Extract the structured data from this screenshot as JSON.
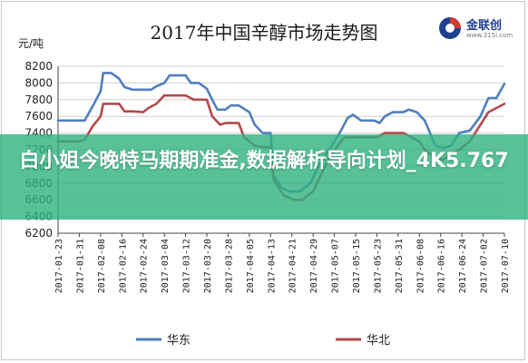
{
  "page": {
    "banner_text": "白小姐今晚特马期期准金,数据解析导向计划_4K5.767"
  },
  "logo": {
    "name": "金联创",
    "url": "www.315i.com",
    "colors": [
      "#1f3f8f",
      "#d23a2e"
    ]
  },
  "colors": {
    "华东": "#4f7fbf",
    "华北": "#b34a4a",
    "grid": "#cfcfcf",
    "banner": "#2eb280"
  },
  "chart_data": {
    "type": "line",
    "title": "2017年中国辛醇市场走势图",
    "ylabel": "元/吨",
    "xlabel": "",
    "ylim": [
      6200,
      8200
    ],
    "yticks": [
      6200,
      6400,
      6600,
      6800,
      7000,
      7200,
      7400,
      7600,
      7800,
      8000,
      8200
    ],
    "x_range": [
      "2017-01-23",
      "2017-07-10"
    ],
    "xtick_labels": [
      "2017-01-23",
      "2017-01-31",
      "2017-02-08",
      "2017-02-16",
      "2017-02-24",
      "2017-03-04",
      "2017-03-12",
      "2017-03-20",
      "2017-03-28",
      "2017-04-05",
      "2017-04-13",
      "2017-04-21",
      "2017-04-29",
      "2017-05-07",
      "2017-05-15",
      "2017-05-23",
      "2017-05-31",
      "2017-06-08",
      "2017-06-16",
      "2017-06-24",
      "2017-07-02",
      "2017-07-10"
    ],
    "grid": "horizontal",
    "legend_position": "bottom",
    "series": [
      {
        "name": "华东",
        "color": "#4f7fbf",
        "points": [
          [
            "2017-01-23",
            7550
          ],
          [
            "2017-01-31",
            7550
          ],
          [
            "2017-02-02",
            7550
          ],
          [
            "2017-02-05",
            7720
          ],
          [
            "2017-02-08",
            7900
          ],
          [
            "2017-02-09",
            8120
          ],
          [
            "2017-02-12",
            8120
          ],
          [
            "2017-02-15",
            8050
          ],
          [
            "2017-02-17",
            7950
          ],
          [
            "2017-02-20",
            7920
          ],
          [
            "2017-02-24",
            7920
          ],
          [
            "2017-02-27",
            7920
          ],
          [
            "2017-03-01",
            7960
          ],
          [
            "2017-03-04",
            8000
          ],
          [
            "2017-03-06",
            8090
          ],
          [
            "2017-03-09",
            8090
          ],
          [
            "2017-03-12",
            8090
          ],
          [
            "2017-03-14",
            8000
          ],
          [
            "2017-03-17",
            8000
          ],
          [
            "2017-03-20",
            7930
          ],
          [
            "2017-03-22",
            7800
          ],
          [
            "2017-03-24",
            7680
          ],
          [
            "2017-03-27",
            7680
          ],
          [
            "2017-03-29",
            7730
          ],
          [
            "2017-04-01",
            7730
          ],
          [
            "2017-04-05",
            7650
          ],
          [
            "2017-04-07",
            7500
          ],
          [
            "2017-04-10",
            7400
          ],
          [
            "2017-04-13",
            7400
          ],
          [
            "2017-04-14",
            6900
          ],
          [
            "2017-04-17",
            6750
          ],
          [
            "2017-04-20",
            6700
          ],
          [
            "2017-04-24",
            6700
          ],
          [
            "2017-04-28",
            6800
          ],
          [
            "2017-05-01",
            7000
          ],
          [
            "2017-05-04",
            7150
          ],
          [
            "2017-05-07",
            7300
          ],
          [
            "2017-05-09",
            7400
          ],
          [
            "2017-05-12",
            7580
          ],
          [
            "2017-05-14",
            7620
          ],
          [
            "2017-05-17",
            7550
          ],
          [
            "2017-05-22",
            7550
          ],
          [
            "2017-05-24",
            7520
          ],
          [
            "2017-05-26",
            7600
          ],
          [
            "2017-05-29",
            7650
          ],
          [
            "2017-06-02",
            7650
          ],
          [
            "2017-06-04",
            7680
          ],
          [
            "2017-06-07",
            7650
          ],
          [
            "2017-06-10",
            7550
          ],
          [
            "2017-06-12",
            7400
          ],
          [
            "2017-06-14",
            7250
          ],
          [
            "2017-06-17",
            7220
          ],
          [
            "2017-06-20",
            7250
          ],
          [
            "2017-06-23",
            7400
          ],
          [
            "2017-06-27",
            7430
          ],
          [
            "2017-07-01",
            7600
          ],
          [
            "2017-07-04",
            7820
          ],
          [
            "2017-07-07",
            7820
          ],
          [
            "2017-07-10",
            7990
          ]
        ]
      },
      {
        "name": "华北",
        "color": "#b34a4a",
        "points": [
          [
            "2017-01-23",
            7300
          ],
          [
            "2017-01-31",
            7300
          ],
          [
            "2017-02-02",
            7320
          ],
          [
            "2017-02-05",
            7480
          ],
          [
            "2017-02-08",
            7600
          ],
          [
            "2017-02-09",
            7750
          ],
          [
            "2017-02-15",
            7750
          ],
          [
            "2017-02-17",
            7660
          ],
          [
            "2017-02-20",
            7660
          ],
          [
            "2017-02-24",
            7650
          ],
          [
            "2017-02-26",
            7700
          ],
          [
            "2017-03-01",
            7750
          ],
          [
            "2017-03-04",
            7850
          ],
          [
            "2017-03-12",
            7850
          ],
          [
            "2017-03-15",
            7800
          ],
          [
            "2017-03-20",
            7800
          ],
          [
            "2017-03-22",
            7600
          ],
          [
            "2017-03-25",
            7500
          ],
          [
            "2017-03-27",
            7520
          ],
          [
            "2017-04-01",
            7520
          ],
          [
            "2017-04-03",
            7350
          ],
          [
            "2017-04-07",
            7250
          ],
          [
            "2017-04-10",
            7230
          ],
          [
            "2017-04-13",
            7230
          ],
          [
            "2017-04-14",
            6850
          ],
          [
            "2017-04-18",
            6650
          ],
          [
            "2017-04-22",
            6600
          ],
          [
            "2017-04-25",
            6600
          ],
          [
            "2017-04-29",
            6700
          ],
          [
            "2017-05-02",
            6900
          ],
          [
            "2017-05-05",
            7100
          ],
          [
            "2017-05-09",
            7280
          ],
          [
            "2017-05-11",
            7350
          ],
          [
            "2017-05-14",
            7350
          ],
          [
            "2017-05-20",
            7350
          ],
          [
            "2017-05-23",
            7350
          ],
          [
            "2017-05-26",
            7400
          ],
          [
            "2017-06-02",
            7400
          ],
          [
            "2017-06-05",
            7350
          ],
          [
            "2017-06-08",
            7300
          ],
          [
            "2017-06-10",
            7200
          ],
          [
            "2017-06-14",
            7100
          ],
          [
            "2017-06-17",
            7080
          ],
          [
            "2017-06-20",
            7150
          ],
          [
            "2017-06-23",
            7200
          ],
          [
            "2017-06-27",
            7300
          ],
          [
            "2017-07-01",
            7500
          ],
          [
            "2017-07-04",
            7650
          ],
          [
            "2017-07-07",
            7700
          ],
          [
            "2017-07-10",
            7750
          ]
        ]
      }
    ]
  }
}
